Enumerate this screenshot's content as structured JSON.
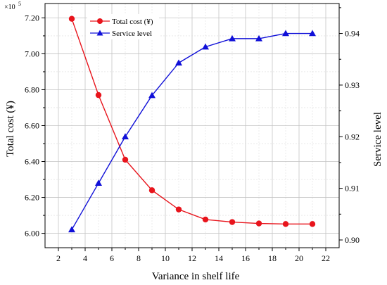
{
  "chart_data": {
    "type": "line",
    "xlabel": "Variance in shelf life",
    "ylabel_left": "Total cost (¥)",
    "ylabel_right": "Service level",
    "left_multiplier": {
      "base": "×10",
      "exp": "5"
    },
    "x": [
      3,
      5,
      7,
      9,
      11,
      13,
      15,
      17,
      19,
      21
    ],
    "xlim": [
      1,
      23
    ],
    "xticks": [
      2,
      4,
      6,
      8,
      10,
      12,
      14,
      16,
      18,
      20,
      22
    ],
    "ylim_left": [
      5.92,
      7.28
    ],
    "yticks_left": [
      "6.00",
      "6.20",
      "6.40",
      "6.60",
      "6.80",
      "7.00",
      "7.20"
    ],
    "ylim_right": [
      0.8985,
      0.9458
    ],
    "yticks_right": [
      "0.90",
      "0.91",
      "0.92",
      "0.93",
      "0.94"
    ],
    "grid": true,
    "legend_position": "top-left",
    "series": [
      {
        "name": "Total cost (¥)",
        "axis": "left",
        "color": "#e8141c",
        "marker": "circle",
        "values": [
          7.195,
          6.77,
          6.41,
          6.24,
          6.133,
          6.077,
          6.063,
          6.055,
          6.052,
          6.052
        ]
      },
      {
        "name": "Service level",
        "axis": "right",
        "color": "#1010d8",
        "marker": "triangle",
        "values": [
          0.902,
          0.911,
          0.92,
          0.928,
          0.9343,
          0.9374,
          0.939,
          0.939,
          0.94,
          0.94
        ]
      }
    ]
  }
}
